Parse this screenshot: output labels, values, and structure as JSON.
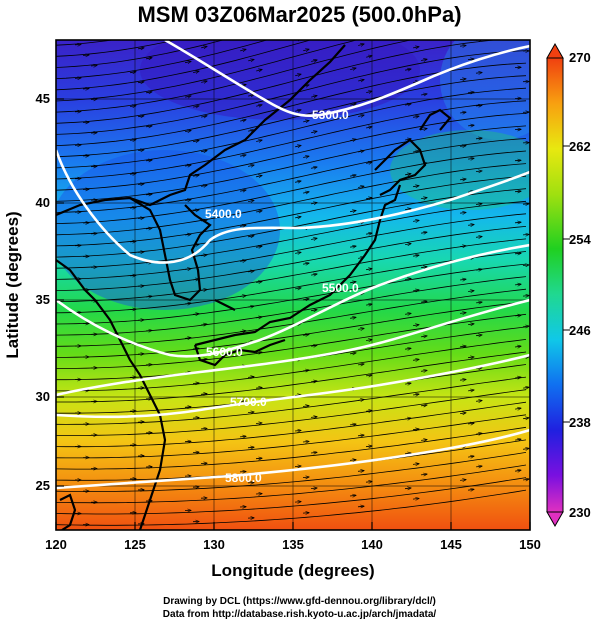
{
  "title": "MSM 03Z06Mar2025 (500.0hPa)",
  "axes": {
    "xlabel": "Longitude (degrees)",
    "ylabel": "Latitude  (degrees)",
    "x_ticks": [
      "120",
      "125",
      "130",
      "135",
      "140",
      "145",
      "150"
    ],
    "y_ticks": [
      "25",
      "30",
      "35",
      "40",
      "45"
    ]
  },
  "colorbar": {
    "ticks": [
      "270",
      "262",
      "254",
      "246",
      "238",
      "230"
    ],
    "range": [
      230,
      270
    ],
    "colors": [
      "#e030c0",
      "#7a10e0",
      "#2020e0",
      "#1070f0",
      "#10c8e8",
      "#20d890",
      "#20d020",
      "#a0e010",
      "#e8e810",
      "#f8a010",
      "#f04010"
    ]
  },
  "contours": [
    {
      "label": "5300.0"
    },
    {
      "label": "5400.0"
    },
    {
      "label": "5500.0"
    },
    {
      "label": "5600.0"
    },
    {
      "label": "5700.0"
    },
    {
      "label": "5800.0"
    }
  ],
  "credits": {
    "line1": "Drawing by DCL (https://www.gfd-dennou.org/library/dcl/)",
    "line2": "Data from http://database.rish.kyoto-u.ac.jp/arch/jmadata/"
  }
}
